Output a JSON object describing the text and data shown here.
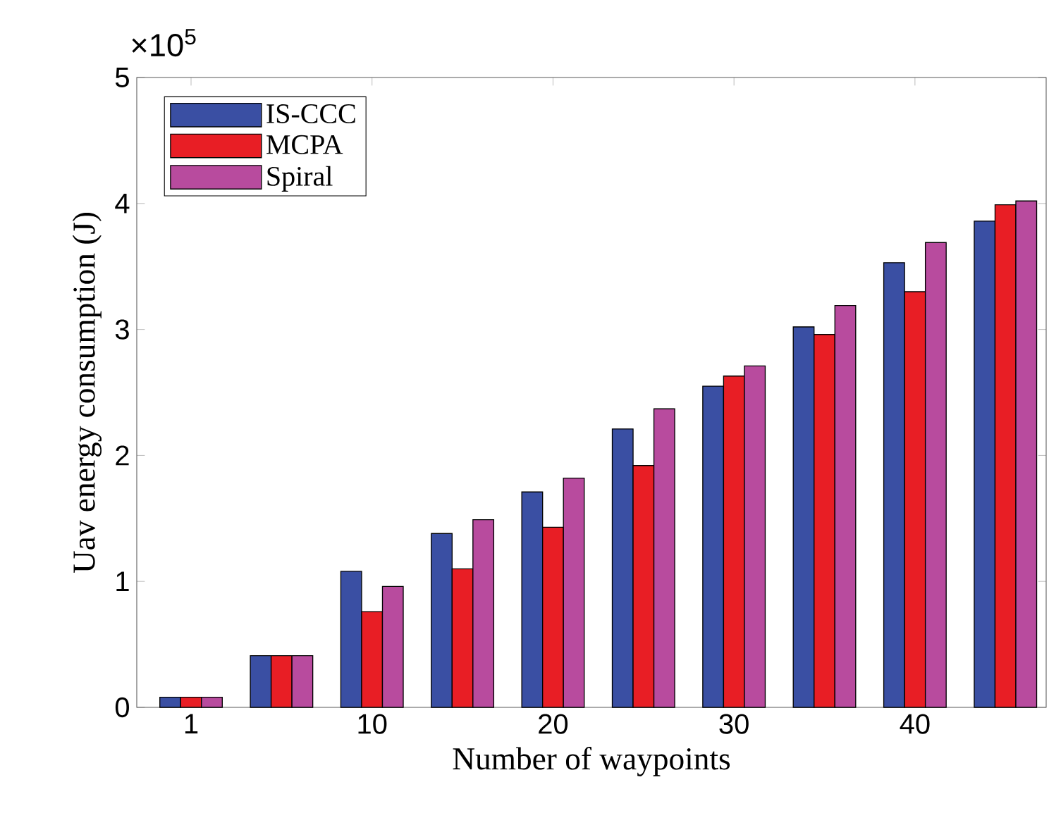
{
  "chart_data": {
    "type": "bar",
    "xlabel": "Number of waypoints",
    "ylabel": "Uav energy consumption (J)",
    "annotations": [
      "×10$^{5}$"
    ],
    "categories": [
      "1",
      null,
      "10",
      null,
      "20",
      null,
      "30",
      null,
      "40",
      null
    ],
    "series": [
      {
        "name": "IS-CCC",
        "color": "#3a4fa3",
        "values": [
          0.08,
          0.41,
          1.08,
          1.38,
          1.71,
          2.21,
          2.55,
          3.02,
          3.53,
          3.86
        ]
      },
      {
        "name": "MCPA",
        "color": "#e81e25",
        "values": [
          0.08,
          0.41,
          0.76,
          1.1,
          1.43,
          1.92,
          2.63,
          2.96,
          3.3,
          3.99
        ]
      },
      {
        "name": "Spiral",
        "color": "#b84b9e",
        "values": [
          0.08,
          0.41,
          0.96,
          1.49,
          1.82,
          2.37,
          2.71,
          3.19,
          3.69,
          4.02
        ]
      }
    ],
    "ylim": [
      0,
      5
    ],
    "yticks": [
      0,
      1,
      2,
      3,
      4,
      5
    ],
    "legend": "top left"
  }
}
